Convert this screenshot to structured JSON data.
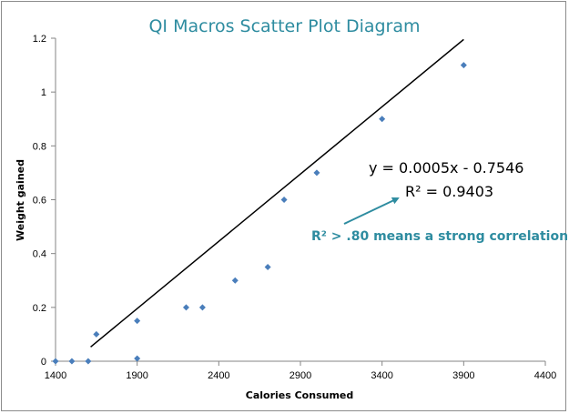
{
  "chart_data": {
    "type": "scatter",
    "title": "QI Macros Scatter Plot Diagram",
    "xlabel": "Calories Consumed",
    "ylabel": "Weight gained",
    "xlim": [
      1400,
      4400
    ],
    "ylim": [
      0,
      1.2
    ],
    "x_ticks": [
      "1400",
      "1900",
      "2400",
      "2900",
      "3400",
      "3900",
      "4400"
    ],
    "y_ticks": [
      "0",
      "0.2",
      "0.4",
      "0.6",
      "0.8",
      "1",
      "1.2"
    ],
    "x_tick_values": [
      1400,
      1900,
      2400,
      2900,
      3400,
      3900,
      4400
    ],
    "y_tick_values": [
      0,
      0.2,
      0.4,
      0.6,
      0.8,
      1.0,
      1.2
    ],
    "points": [
      {
        "x": 1400,
        "y": 0
      },
      {
        "x": 1500,
        "y": 0
      },
      {
        "x": 1600,
        "y": 0
      },
      {
        "x": 1650,
        "y": 0.1
      },
      {
        "x": 1900,
        "y": 0.15
      },
      {
        "x": 1900,
        "y": 0.01
      },
      {
        "x": 2200,
        "y": 0.2
      },
      {
        "x": 2300,
        "y": 0.2
      },
      {
        "x": 2500,
        "y": 0.3
      },
      {
        "x": 2700,
        "y": 0.35
      },
      {
        "x": 2800,
        "y": 0.6
      },
      {
        "x": 3000,
        "y": 0.7
      },
      {
        "x": 3400,
        "y": 0.9
      },
      {
        "x": 3900,
        "y": 1.1
      }
    ],
    "trendline": {
      "slope": 0.0005,
      "intercept": -0.7546,
      "x_range": [
        1615,
        3900
      ]
    },
    "marker_color": "#4a7ebb",
    "trendline_color": "#000000",
    "grid": false,
    "legend": "none",
    "annotations": {
      "equation": "y = 0.0005x - 0.7546",
      "r_squared": "R² = 0.9403",
      "note": "R² > .80 means a strong correlation",
      "note_color": "#2e8ca0"
    }
  }
}
